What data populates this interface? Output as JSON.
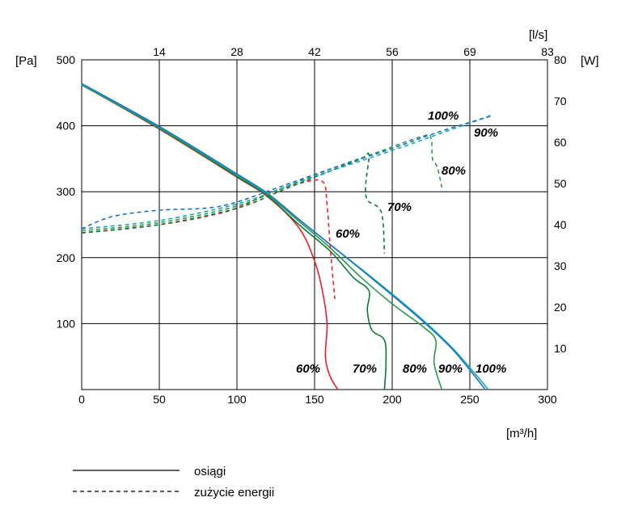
{
  "chart_data": {
    "type": "line",
    "x_unit_main": "m³/h",
    "x_unit_top": "l/s",
    "y_unit_left": "Pa",
    "y_unit_right": "W",
    "xlim": [
      0,
      300
    ],
    "ylim_left": [
      0,
      500
    ],
    "ylim_right": [
      0,
      80
    ],
    "x_ticks": [
      "0",
      "50",
      "100",
      "150",
      "200",
      "250",
      "300"
    ],
    "top_ticks": [
      "14",
      "28",
      "42",
      "56",
      "69",
      "83"
    ],
    "y_ticks_left": [
      "100",
      "200",
      "300",
      "400",
      "500"
    ],
    "y_ticks_right": [
      "10",
      "20",
      "30",
      "40",
      "50",
      "60",
      "70",
      "80"
    ],
    "grid": true,
    "curve_labels_bottom": [
      "60%",
      "70%",
      "80%",
      "90%",
      "100%"
    ],
    "curve_labels_power": [
      "100%",
      "90%",
      "80%",
      "70%",
      "60%"
    ],
    "colors": {
      "60%": "#e8202a",
      "70%": "#0a7a3a",
      "80%": "#2e9a4e",
      "90%": "#1aa8a8",
      "100%": "#1a73c8"
    },
    "legend": [
      {
        "style": "solid",
        "label": "osiągi"
      },
      {
        "style": "dashed",
        "label": "zużycie energii"
      }
    ],
    "series": [
      {
        "name": "60%",
        "kind": "performance",
        "axis": "left",
        "points": [
          [
            0,
            462
          ],
          [
            50,
            395
          ],
          [
            100,
            322
          ],
          [
            120,
            292
          ],
          [
            140,
            245
          ],
          [
            150,
            195
          ],
          [
            155,
            150
          ],
          [
            158,
            100
          ],
          [
            157,
            50
          ],
          [
            160,
            20
          ],
          [
            165,
            0
          ]
        ]
      },
      {
        "name": "70%",
        "kind": "performance",
        "axis": "left",
        "points": [
          [
            0,
            462
          ],
          [
            50,
            396
          ],
          [
            100,
            323
          ],
          [
            120,
            293
          ],
          [
            140,
            250
          ],
          [
            160,
            210
          ],
          [
            175,
            170
          ],
          [
            185,
            150
          ],
          [
            184,
            120
          ],
          [
            187,
            90
          ],
          [
            195,
            75
          ],
          [
            196,
            40
          ],
          [
            195,
            0
          ]
        ]
      },
      {
        "name": "80%",
        "kind": "performance",
        "axis": "left",
        "points": [
          [
            0,
            462
          ],
          [
            50,
            397
          ],
          [
            100,
            325
          ],
          [
            120,
            295
          ],
          [
            140,
            255
          ],
          [
            160,
            215
          ],
          [
            180,
            170
          ],
          [
            200,
            130
          ],
          [
            220,
            95
          ],
          [
            228,
            75
          ],
          [
            227,
            40
          ],
          [
            232,
            0
          ]
        ]
      },
      {
        "name": "90%",
        "kind": "performance",
        "axis": "left",
        "points": [
          [
            0,
            463
          ],
          [
            50,
            398
          ],
          [
            100,
            326
          ],
          [
            120,
            296
          ],
          [
            140,
            258
          ],
          [
            160,
            220
          ],
          [
            180,
            183
          ],
          [
            200,
            145
          ],
          [
            220,
            105
          ],
          [
            240,
            60
          ],
          [
            262,
            0
          ]
        ]
      },
      {
        "name": "100%",
        "kind": "performance",
        "axis": "left",
        "points": [
          [
            0,
            464
          ],
          [
            50,
            399
          ],
          [
            100,
            327
          ],
          [
            120,
            297
          ],
          [
            140,
            258
          ],
          [
            160,
            220
          ],
          [
            180,
            182
          ],
          [
            200,
            143
          ],
          [
            220,
            103
          ],
          [
            240,
            58
          ],
          [
            260,
            0
          ]
        ]
      },
      {
        "name": "60%",
        "kind": "power",
        "axis": "right",
        "points": [
          [
            0,
            38
          ],
          [
            50,
            40
          ],
          [
            80,
            42
          ],
          [
            100,
            44
          ],
          [
            120,
            47.5
          ],
          [
            140,
            50
          ],
          [
            155,
            50.5
          ],
          [
            158,
            45
          ],
          [
            160,
            35
          ],
          [
            163,
            22
          ]
        ]
      },
      {
        "name": "70%",
        "kind": "power",
        "axis": "right",
        "points": [
          [
            0,
            38
          ],
          [
            50,
            40
          ],
          [
            100,
            44
          ],
          [
            130,
            48.5
          ],
          [
            160,
            53
          ],
          [
            180,
            56
          ],
          [
            185,
            57
          ],
          [
            183,
            50
          ],
          [
            184,
            46
          ],
          [
            193,
            43
          ],
          [
            195,
            33
          ]
        ]
      },
      {
        "name": "80%",
        "kind": "power",
        "axis": "right",
        "points": [
          [
            0,
            38.5
          ],
          [
            50,
            40.5
          ],
          [
            100,
            44.5
          ],
          [
            130,
            49
          ],
          [
            160,
            53.5
          ],
          [
            190,
            57.5
          ],
          [
            220,
            61.5
          ],
          [
            225,
            61
          ],
          [
            226,
            56
          ],
          [
            229,
            54
          ],
          [
            232,
            49
          ]
        ]
      },
      {
        "name": "90%",
        "kind": "power",
        "axis": "right",
        "points": [
          [
            0,
            39
          ],
          [
            50,
            41
          ],
          [
            100,
            45
          ],
          [
            130,
            49
          ],
          [
            160,
            53
          ],
          [
            200,
            58
          ],
          [
            230,
            62
          ],
          [
            260,
            66
          ],
          [
            262,
            66.5
          ]
        ]
      },
      {
        "name": "100%",
        "kind": "power",
        "axis": "right",
        "points": [
          [
            0,
            39
          ],
          [
            20,
            42
          ],
          [
            50,
            43.5
          ],
          [
            80,
            44
          ],
          [
            100,
            45.5
          ],
          [
            130,
            49.5
          ],
          [
            160,
            53.5
          ],
          [
            200,
            58.5
          ],
          [
            230,
            62.5
          ],
          [
            265,
            66.5
          ]
        ]
      }
    ]
  }
}
